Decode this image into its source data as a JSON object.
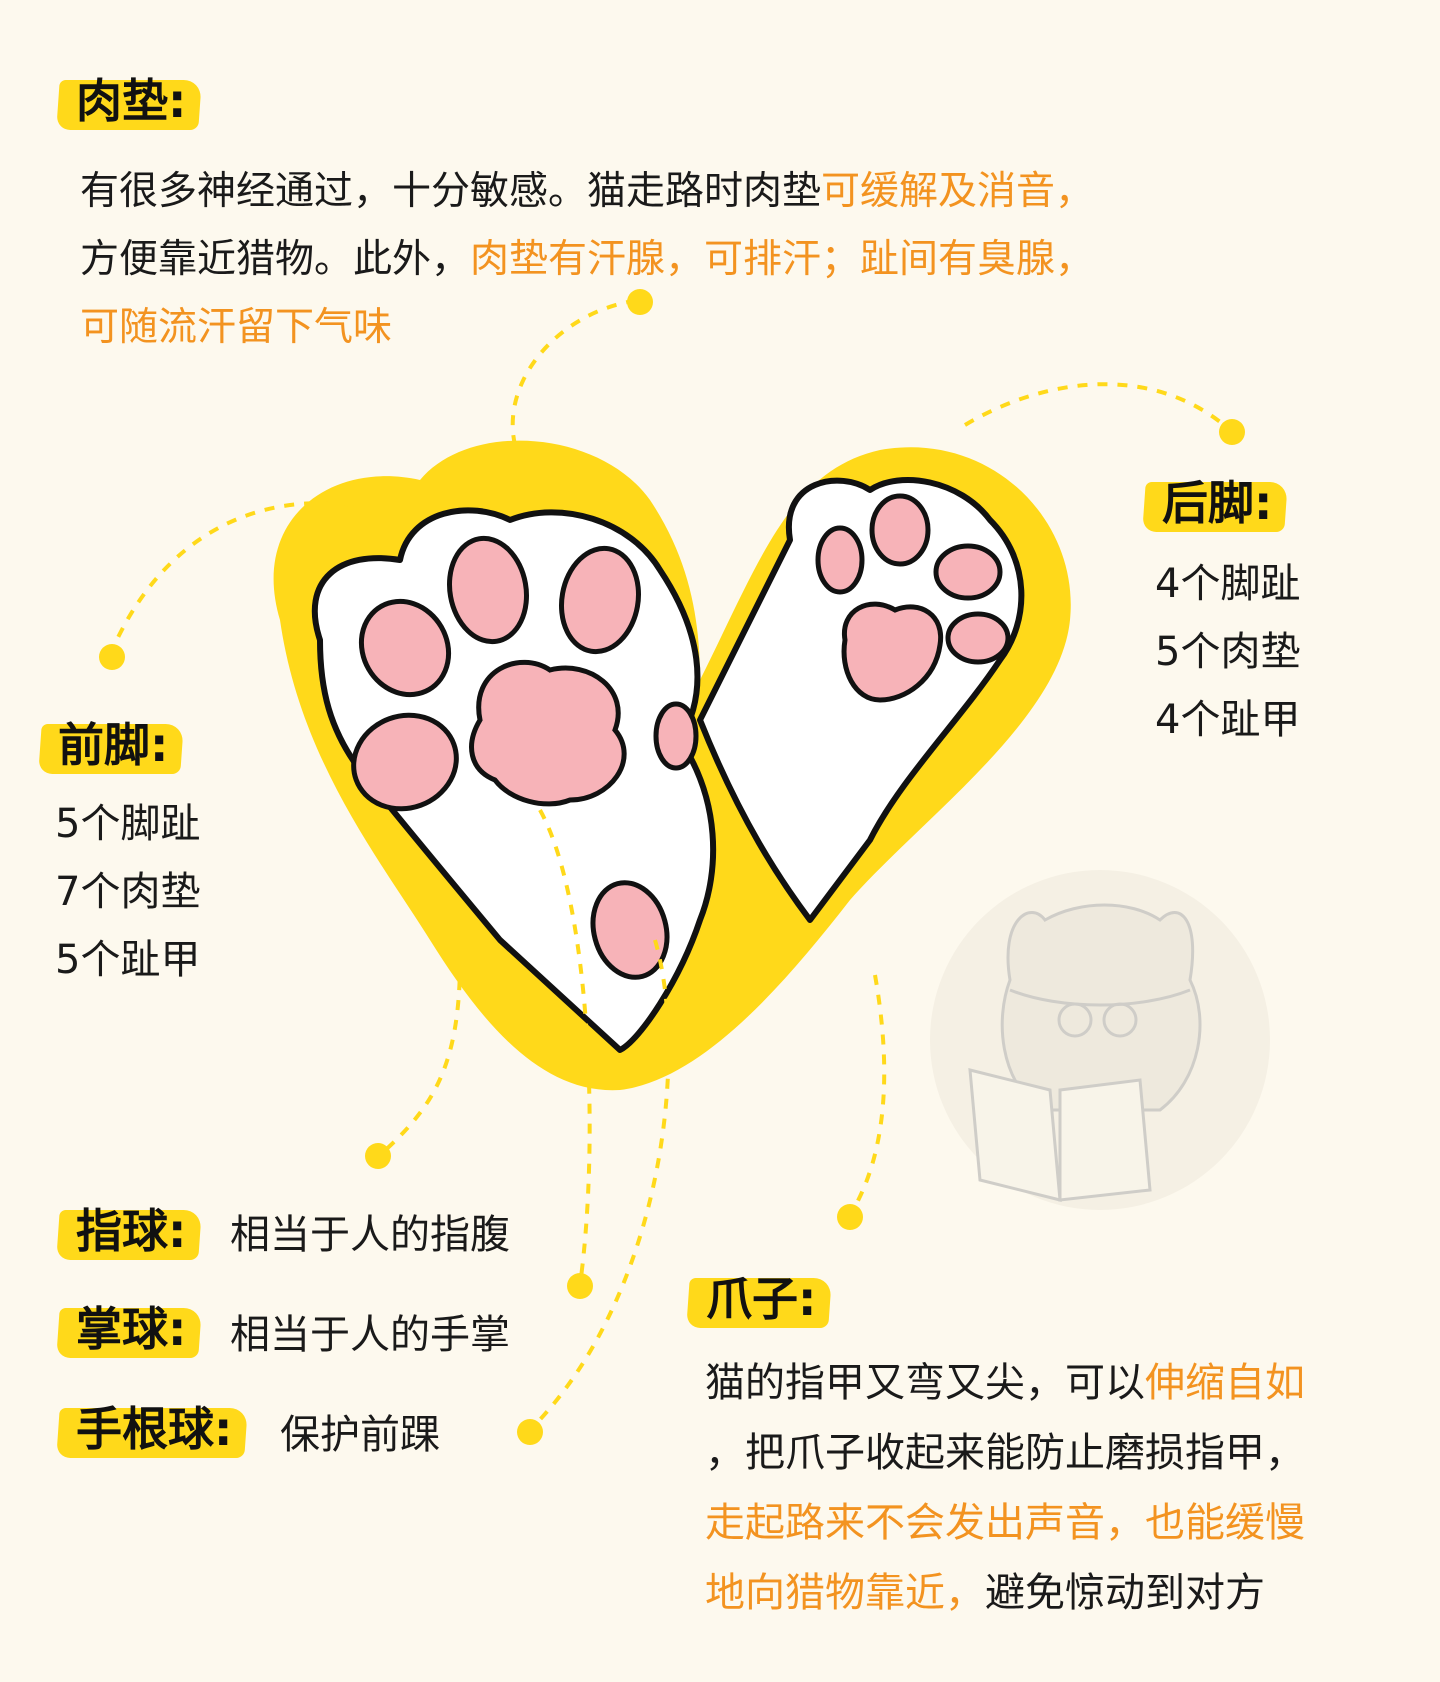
{
  "pad_section": {
    "heading": "肉垫:",
    "p1": "有很多神经通过，十分敏感。猫走路时肉垫",
    "p1_hl": "可缓解及消音，",
    "p2": "方便靠近猎物。此外，",
    "p2_hl": "肉垫有汗腺，可排汗；趾间有臭腺，",
    "p3_hl": "可随流汗留下气味"
  },
  "hind_feet": {
    "heading": "后脚:",
    "lines": [
      "4个脚趾",
      "5个肉垫",
      "4个趾甲"
    ]
  },
  "front_feet": {
    "heading": "前脚:",
    "lines": [
      "5个脚趾",
      "7个肉垫",
      "5个趾甲"
    ]
  },
  "balls": {
    "toe_ball": {
      "heading": "指球:",
      "desc": "相当于人的指腹"
    },
    "palm_ball": {
      "heading": "掌球:",
      "desc": "相当于人的手掌"
    },
    "wrist_ball": {
      "heading": "手根球:",
      "desc": "保护前踝"
    }
  },
  "claws": {
    "heading": "爪子:",
    "l1": "猫的指甲又弯又尖，可以",
    "l1_hl": "伸缩自如",
    "l2": "，把爪子收起来能防止磨损指甲，",
    "l3_hl": "走起路来不会发出声音，也能缓慢",
    "l4_hl": "地向猎物靠近，",
    "l4": "避免惊动到对方"
  },
  "colors": {
    "background": "#fdf9ee",
    "highlight_yellow": "#ffd91a",
    "accent_orange": "#f39320",
    "pad_pink": "#f7b3b8"
  }
}
